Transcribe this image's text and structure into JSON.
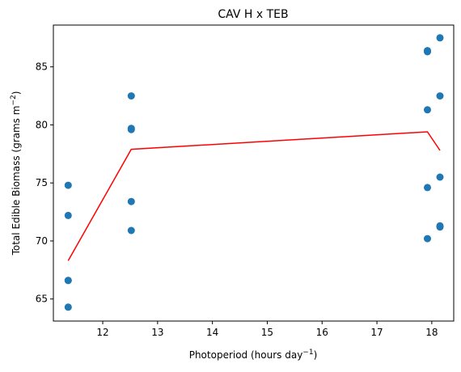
{
  "chart_data": {
    "type": "scatter",
    "title": "CAV H x TEB",
    "xlabel": "Photoperiod (hours day",
    "xlabel_sup": "−1",
    "xlabel_end": ")",
    "ylabel": "Total Edible Biomass (grams m",
    "ylabel_sup": "−2",
    "ylabel_end": ")",
    "xlim": [
      11.1,
      18.4
    ],
    "ylim": [
      63.1,
      88.6
    ],
    "xticks": [
      12,
      13,
      14,
      15,
      16,
      17,
      18
    ],
    "yticks": [
      65,
      70,
      75,
      80,
      85
    ],
    "grid": false,
    "points": [
      {
        "x": 11.37,
        "y": 74.8
      },
      {
        "x": 11.37,
        "y": 72.2
      },
      {
        "x": 11.37,
        "y": 66.6
      },
      {
        "x": 11.37,
        "y": 66.6
      },
      {
        "x": 11.37,
        "y": 64.3
      },
      {
        "x": 12.52,
        "y": 82.5
      },
      {
        "x": 12.52,
        "y": 79.6
      },
      {
        "x": 12.52,
        "y": 79.7
      },
      {
        "x": 12.52,
        "y": 73.4
      },
      {
        "x": 12.52,
        "y": 70.9
      },
      {
        "x": 17.92,
        "y": 86.3
      },
      {
        "x": 17.92,
        "y": 86.4
      },
      {
        "x": 17.92,
        "y": 81.3
      },
      {
        "x": 17.92,
        "y": 74.6
      },
      {
        "x": 17.92,
        "y": 70.2
      },
      {
        "x": 18.15,
        "y": 87.5
      },
      {
        "x": 18.15,
        "y": 82.5
      },
      {
        "x": 18.15,
        "y": 75.5
      },
      {
        "x": 18.15,
        "y": 71.2
      },
      {
        "x": 18.15,
        "y": 71.3
      }
    ],
    "line": {
      "x": [
        11.37,
        12.52,
        17.92,
        18.15
      ],
      "y": [
        68.3,
        77.9,
        79.4,
        77.8
      ]
    },
    "colors": {
      "points": "#1f77b4",
      "line": "#ff0000",
      "axes": "#000000"
    }
  }
}
